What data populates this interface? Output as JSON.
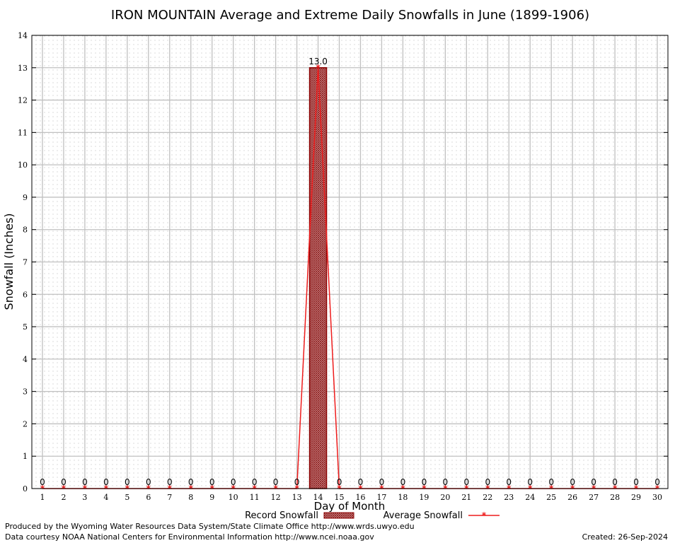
{
  "chart_data": {
    "type": "bar",
    "title": "IRON MOUNTAIN Average and Extreme Daily Snowfalls in June (1899-1906)",
    "xlabel": "Day of Month",
    "ylabel": "Snowfall (Inches)",
    "ylim": [
      0,
      14
    ],
    "yticks": [
      "0",
      "1",
      "2",
      "3",
      "4",
      "5",
      "6",
      "7",
      "8",
      "9",
      "10",
      "11",
      "12",
      "13",
      "14"
    ],
    "categories": [
      "1",
      "2",
      "3",
      "4",
      "5",
      "6",
      "7",
      "8",
      "9",
      "10",
      "11",
      "12",
      "13",
      "14",
      "15",
      "16",
      "17",
      "18",
      "19",
      "20",
      "21",
      "22",
      "23",
      "24",
      "25",
      "26",
      "27",
      "28",
      "29",
      "30"
    ],
    "series": [
      {
        "name": "Record Snowfall",
        "type": "bar",
        "values": [
          0,
          0,
          0,
          0,
          0,
          0,
          0,
          0,
          0,
          0,
          0,
          0,
          0,
          13.0,
          0,
          0,
          0,
          0,
          0,
          0,
          0,
          0,
          0,
          0,
          0,
          0,
          0,
          0,
          0,
          0
        ],
        "labels": [
          "0",
          "0",
          "0",
          "0",
          "0",
          "0",
          "0",
          "0",
          "0",
          "0",
          "0",
          "0",
          "0",
          "13.0",
          "0",
          "0",
          "0",
          "0",
          "0",
          "0",
          "0",
          "0",
          "0",
          "0",
          "0",
          "0",
          "0",
          "0",
          "0",
          "0"
        ]
      },
      {
        "name": "Average Snowfall",
        "type": "line",
        "values": [
          0,
          0,
          0,
          0,
          0,
          0,
          0,
          0,
          0,
          0,
          0,
          0,
          0,
          13.0,
          0,
          0,
          0,
          0,
          0,
          0,
          0,
          0,
          0,
          0,
          0,
          0,
          0,
          0,
          0,
          0
        ]
      }
    ],
    "grid": true,
    "legend": "bottom-center",
    "colors": {
      "bar_fill": "#a33b3b",
      "bar_edge": "#8b0000",
      "line": "#ee1c1c",
      "grid_major": "#c0c0c0",
      "grid_minor": "#a0a0a0"
    }
  },
  "footer": {
    "credit": "Produced by the Wyoming Water Resources Data System/State Climate Office http://www.wrds.uwyo.edu",
    "source": "Data courtesy NOAA National Centers for Environmental Information http://www.ncei.noaa.gov",
    "created": "Created: 26-Sep-2024"
  }
}
